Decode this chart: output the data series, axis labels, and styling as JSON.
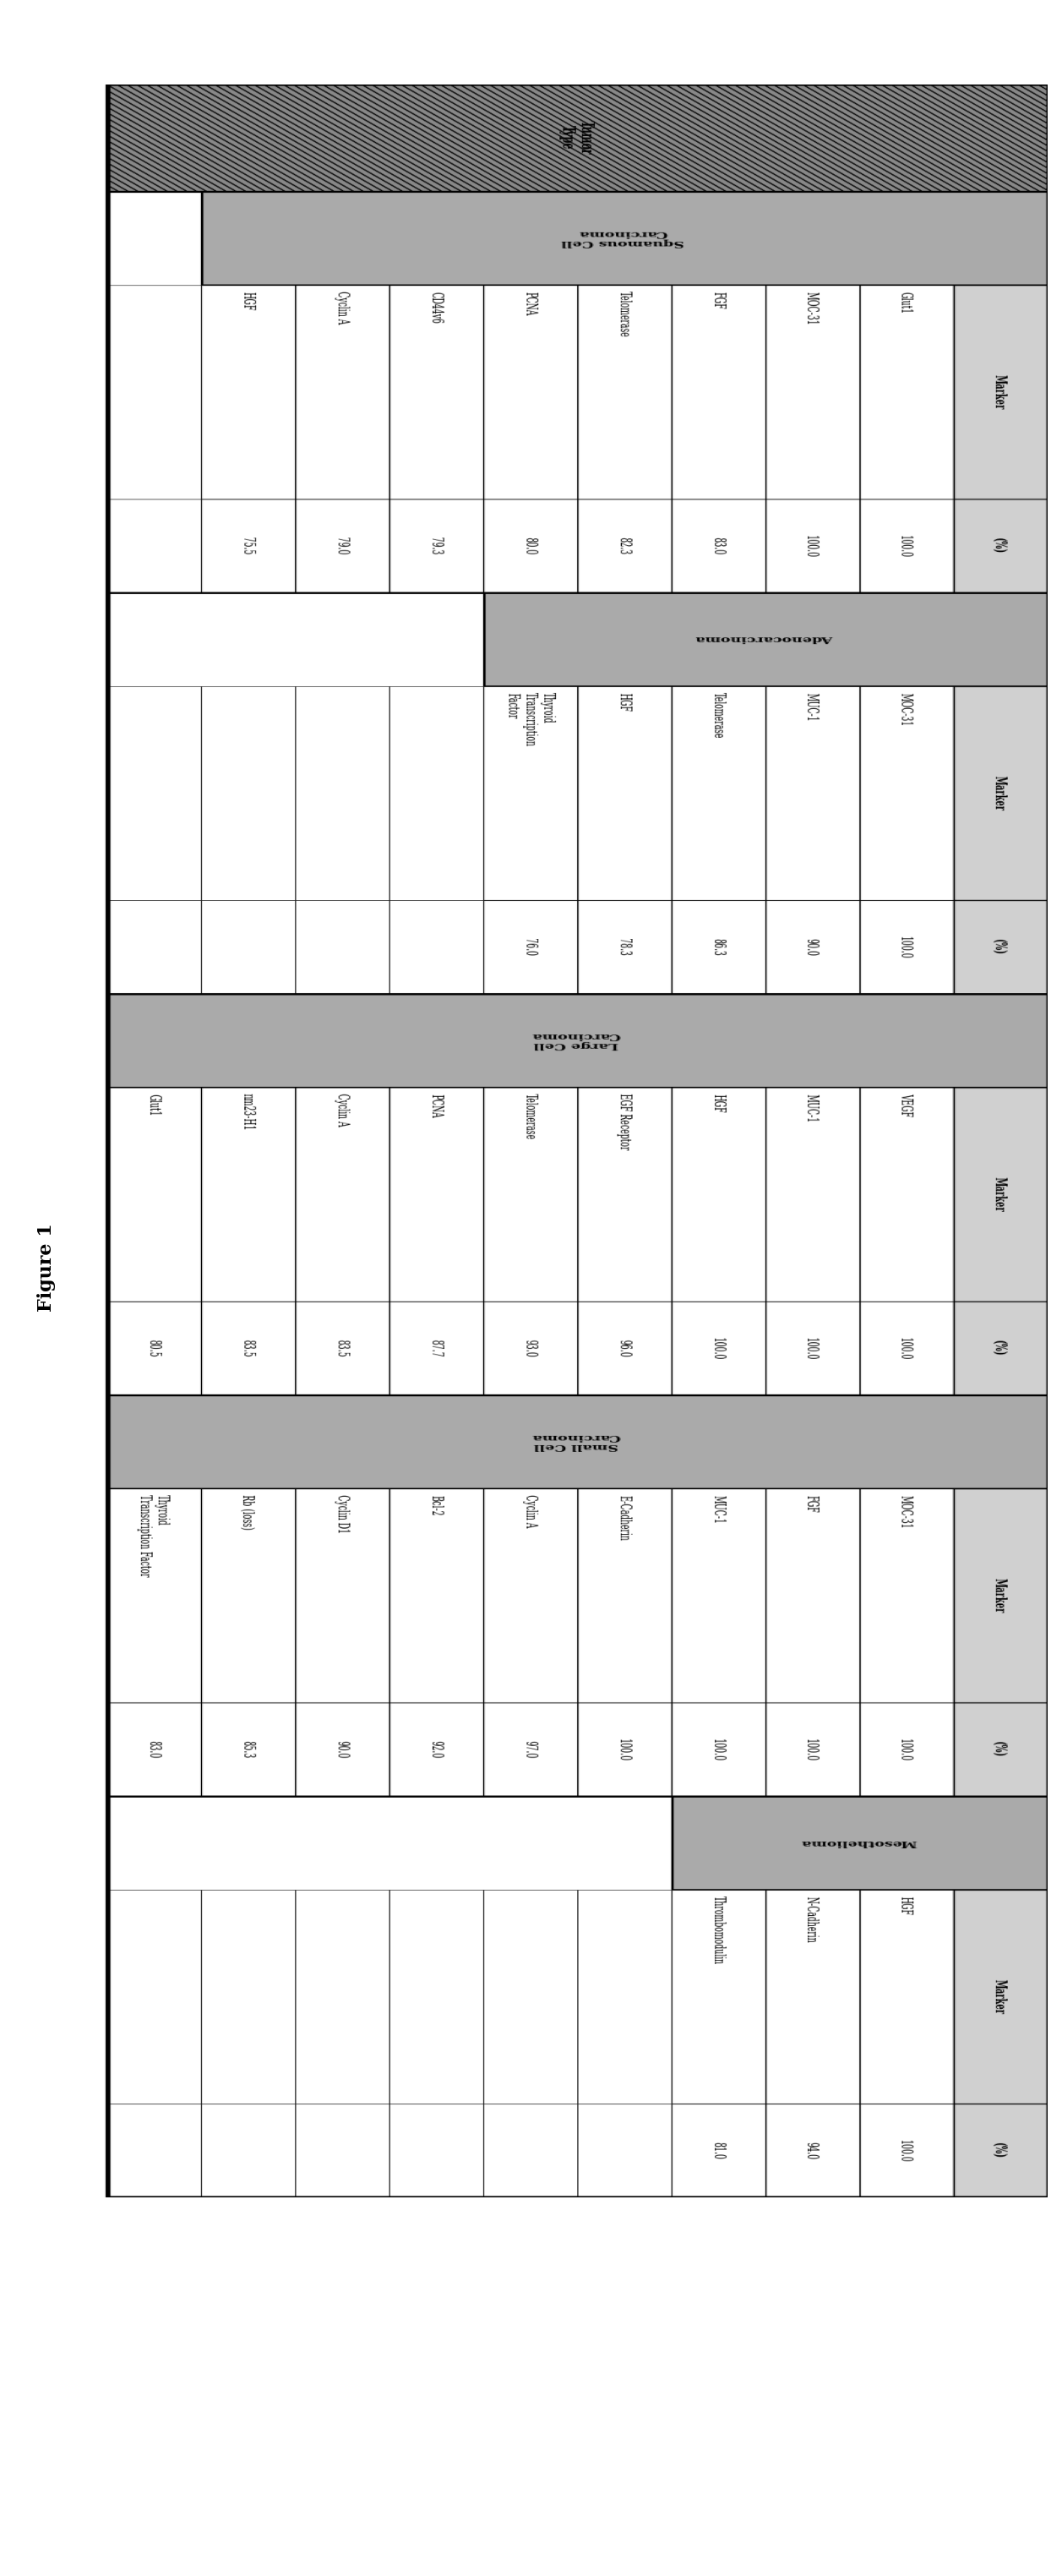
{
  "title": "Figure 1",
  "columns": [
    {
      "tumor_type": "Squamous Cell\nCarcinoma",
      "markers": [
        "Glut1",
        "MOC-31",
        "FGF",
        "Telomerase",
        "PCNA",
        "CD44v6",
        "Cyclin A",
        "HGF"
      ],
      "values": [
        "100.0",
        "100.0",
        "83.0",
        "82.3",
        "80.0",
        "79.3",
        "79.0",
        "75.5"
      ]
    },
    {
      "tumor_type": "Adenocarcinoma",
      "markers": [
        "MOC-31",
        "MUC-1",
        "Telomerase",
        "HGF",
        "Thyroid\nTranscription\nFactor"
      ],
      "values": [
        "100.0",
        "90.0",
        "86.3",
        "78.3",
        "76.0"
      ]
    },
    {
      "tumor_type": "Large Cell\nCarcinoma",
      "markers": [
        "VEGF",
        "MUC-1",
        "HGF",
        "EGF Receptor",
        "Telomerase",
        "PCNA",
        "Cyclin A",
        "nm23-H1",
        "Glut1"
      ],
      "values": [
        "100.0",
        "100.0",
        "100.0",
        "96.0",
        "93.0",
        "87.7",
        "83.5",
        "83.5",
        "80.5"
      ]
    },
    {
      "tumor_type": "Small Cell\nCarcinoma",
      "markers": [
        "MOC-31",
        "FGF",
        "MUC-1",
        "E-Cadherin",
        "Cyclin A",
        "Bcl-2",
        "Cyclin D1",
        "Rb (loss)",
        "Thyroid\nTranscription Factor"
      ],
      "values": [
        "100.0",
        "100.0",
        "100.0",
        "100.0",
        "97.0",
        "92.0",
        "90.0",
        "85.3",
        "83.0"
      ]
    },
    {
      "tumor_type": "Mesothelioma",
      "markers": [
        "HGF",
        "N-Cadherin",
        "Thrombomodulin"
      ],
      "values": [
        "100.0",
        "94.0",
        "81.0"
      ]
    }
  ],
  "bg_color": "#ffffff",
  "hatch_color": "#666666",
  "header_bg": "#cccccc",
  "subheader_bg": "#aaaaaa",
  "border_color": "#000000",
  "title_fontsize": 16,
  "header_fontsize": 9,
  "cell_fontsize": 8.5,
  "label_fontsize": 9
}
